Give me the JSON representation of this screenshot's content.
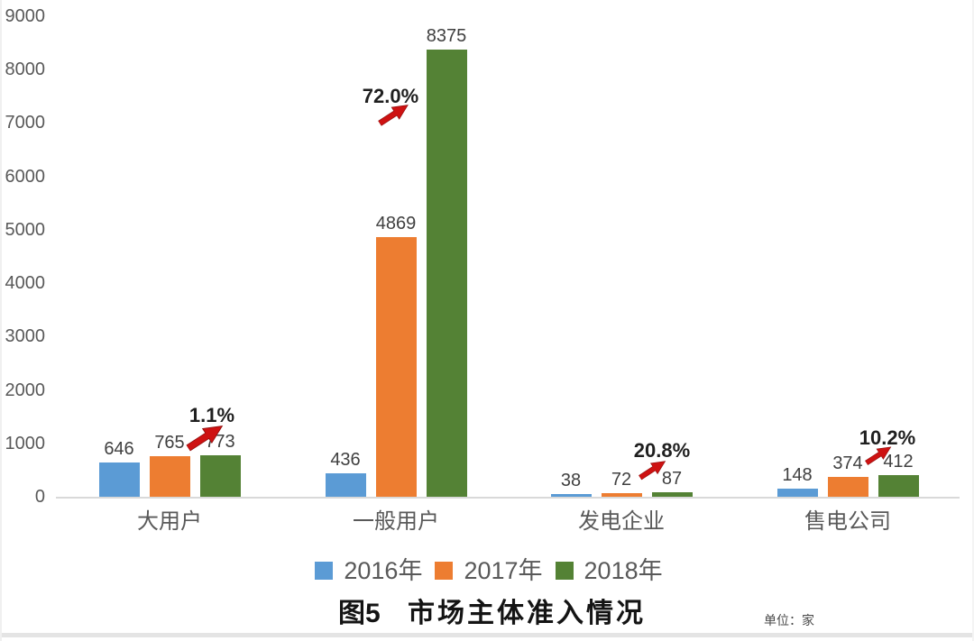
{
  "page": {
    "figure_title_prefix": "图5",
    "figure_title_text": "市场主体准入情况",
    "unit_note": "单位：家"
  },
  "chart_data": {
    "type": "bar",
    "title": "图5 市场主体准入情况",
    "unit": "家",
    "categories": [
      "大用户",
      "一般用户",
      "发电企业",
      "售电公司"
    ],
    "series": [
      {
        "name": "2016年",
        "color": "#5B9BD5",
        "values": [
          646,
          436,
          38,
          148
        ]
      },
      {
        "name": "2017年",
        "color": "#ED7D31",
        "values": [
          765,
          4869,
          72,
          374
        ]
      },
      {
        "name": "2018年",
        "color": "#548235",
        "values": [
          773,
          8375,
          87,
          412
        ]
      }
    ],
    "annotations": [
      {
        "label": "1.1%",
        "category": "大用户"
      },
      {
        "label": "72.0%",
        "category": "一般用户"
      },
      {
        "label": "20.8%",
        "category": "发电企业"
      },
      {
        "label": "10.2%",
        "category": "售电公司"
      }
    ],
    "ylim": [
      0,
      9000
    ],
    "ytick_step": 1000,
    "ytick_labels": [
      "0",
      "1000",
      "2000",
      "3000",
      "4000",
      "5000",
      "6000",
      "7000",
      "8000",
      "9000"
    ],
    "grid": false,
    "legend_position": "bottom",
    "arrow_color": "#CE1212",
    "arrow_outline_color": "#8F0D0D",
    "axis_line_color": "#D9D9D9",
    "tick_label_color": "#595959",
    "value_label_color": "#404040"
  }
}
